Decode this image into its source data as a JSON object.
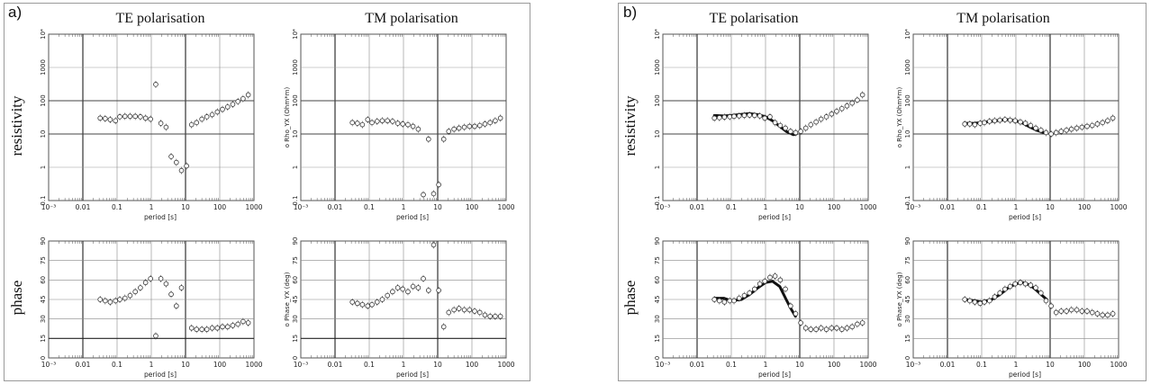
{
  "panels": [
    {
      "label": "a)",
      "columns": [
        "TE polarisation",
        "TM polarisation"
      ],
      "rows": [
        "resistivity",
        "phase"
      ]
    },
    {
      "label": "b)",
      "columns": [
        "TE polarisation",
        "TM polarisation"
      ],
      "rows": [
        "resistivity",
        "phase"
      ]
    }
  ],
  "axes": {
    "x_ticks": [
      "10⁻³",
      "0.01",
      "0.1",
      "1",
      "10",
      "100",
      "1000"
    ],
    "x_label": "period [s]",
    "res_ticks": [
      "0.1",
      "1",
      "10",
      "100",
      "1000",
      "10⁴"
    ],
    "phase_ticks": [
      "0",
      "15",
      "30",
      "45",
      "60",
      "75",
      "90"
    ],
    "ylabel_te_res": "",
    "ylabel_tm_res": "o Rho_YX (Ohm*m)",
    "ylabel_te_phase": "",
    "ylabel_tm_phase": "o Phase_YX (deg)"
  },
  "chart_data": [
    {
      "id": "a-te-res",
      "type": "scatter",
      "title": "TE polarisation",
      "ylabel": "resistivity",
      "xlabel": "period [s]",
      "xscale": "log",
      "yscale": "log",
      "xlim": [
        0.001,
        1000
      ],
      "ylim": [
        0.1,
        10000
      ],
      "x": [
        0.032,
        0.045,
        0.063,
        0.09,
        0.12,
        0.17,
        0.24,
        0.34,
        0.48,
        0.68,
        0.95,
        1.35,
        1.9,
        2.7,
        3.8,
        5.4,
        7.6,
        10.7,
        15,
        21,
        30,
        42,
        60,
        85,
        120,
        170,
        240,
        340,
        480,
        680
      ],
      "y": [
        30,
        29,
        27,
        25,
        33,
        34,
        34,
        34,
        33,
        30,
        28,
        310,
        21,
        16,
        2.1,
        1.4,
        0.8,
        1.1,
        19,
        22,
        28,
        33,
        38,
        46,
        55,
        65,
        78,
        95,
        115,
        150
      ]
    },
    {
      "id": "a-tm-res",
      "type": "scatter",
      "title": "TM polarisation",
      "ylabel": "o Rho_YX (Ohm*m)",
      "xlabel": "period [s]",
      "xscale": "log",
      "yscale": "log",
      "xlim": [
        0.001,
        1000
      ],
      "ylim": [
        0.1,
        10000
      ],
      "x": [
        0.032,
        0.045,
        0.063,
        0.09,
        0.12,
        0.17,
        0.24,
        0.34,
        0.48,
        0.68,
        0.95,
        1.35,
        1.9,
        2.7,
        3.8,
        5.4,
        7.6,
        10.7,
        15,
        21,
        30,
        42,
        60,
        85,
        120,
        170,
        240,
        340,
        480,
        680
      ],
      "y": [
        22,
        21,
        19,
        27,
        22,
        24,
        25,
        25,
        24,
        21,
        20,
        19,
        17,
        14,
        0.15,
        7,
        0.16,
        0.3,
        7,
        12,
        14,
        15,
        16,
        17,
        17,
        18,
        20,
        22,
        25,
        30
      ]
    },
    {
      "id": "a-te-phase",
      "type": "scatter",
      "title": "",
      "ylabel": "phase",
      "xlabel": "period [s]",
      "xscale": "log",
      "xlim": [
        0.001,
        1000
      ],
      "ylim": [
        0,
        90
      ],
      "x": [
        0.032,
        0.045,
        0.063,
        0.09,
        0.12,
        0.17,
        0.24,
        0.34,
        0.48,
        0.68,
        0.95,
        1.35,
        1.9,
        2.7,
        3.8,
        5.4,
        7.6,
        15,
        21,
        30,
        42,
        60,
        85,
        120,
        170,
        240,
        340,
        480,
        680
      ],
      "y": [
        45,
        44,
        43,
        44,
        45,
        46,
        48,
        51,
        54,
        58,
        61,
        17,
        61,
        57,
        49,
        40,
        54,
        23,
        22,
        22,
        22,
        23,
        23,
        24,
        24,
        25,
        26,
        28,
        27
      ]
    },
    {
      "id": "a-tm-phase",
      "type": "scatter",
      "title": "",
      "ylabel": "o Phase_YX (deg)",
      "xlabel": "period [s]",
      "xscale": "log",
      "xlim": [
        0.001,
        1000
      ],
      "ylim": [
        0,
        90
      ],
      "x": [
        0.032,
        0.045,
        0.063,
        0.09,
        0.12,
        0.17,
        0.24,
        0.34,
        0.48,
        0.68,
        0.95,
        1.35,
        1.9,
        2.7,
        3.8,
        5.4,
        7.6,
        10.7,
        15,
        21,
        30,
        42,
        60,
        85,
        120,
        170,
        240,
        340,
        480,
        680
      ],
      "y": [
        43,
        42,
        41,
        40,
        41,
        43,
        45,
        48,
        51,
        54,
        53,
        51,
        55,
        54,
        61,
        52,
        87,
        52,
        24,
        35,
        37,
        38,
        37,
        37,
        36,
        35,
        33,
        32,
        32,
        32
      ]
    },
    {
      "id": "b-te-res",
      "type": "scatter+line",
      "title": "TE polarisation",
      "ylabel": "resistivity",
      "xlabel": "period [s]",
      "xscale": "log",
      "yscale": "log",
      "xlim": [
        0.001,
        1000
      ],
      "ylim": [
        0.1,
        10000
      ],
      "x": [
        0.032,
        0.045,
        0.063,
        0.09,
        0.12,
        0.17,
        0.24,
        0.34,
        0.48,
        0.68,
        0.95,
        1.35,
        1.9,
        2.7,
        3.8,
        5.4,
        7.6,
        10.7,
        15,
        21,
        30,
        42,
        60,
        85,
        120,
        170,
        240,
        340,
        480,
        680
      ],
      "y": [
        30,
        31,
        32,
        33,
        34,
        35,
        36,
        37,
        36,
        35,
        30,
        33,
        22,
        18,
        15,
        12,
        11,
        12,
        15,
        19,
        23,
        28,
        33,
        40,
        48,
        58,
        70,
        85,
        105,
        150
      ],
      "fit_x": [
        0.032,
        0.06,
        0.1,
        0.2,
        0.35,
        0.6,
        1,
        1.6,
        2.6,
        4,
        6.5,
        8
      ],
      "fit_y": [
        36,
        35,
        36,
        39,
        41,
        38,
        33,
        25,
        17,
        12,
        9.5,
        10
      ]
    },
    {
      "id": "b-tm-res",
      "type": "scatter+line",
      "title": "TM polarisation",
      "ylabel": "o Rho_YX (Ohm*m)",
      "xlabel": "period [s]",
      "xscale": "log",
      "yscale": "log",
      "xlim": [
        0.001,
        1000
      ],
      "ylim": [
        0.1,
        10000
      ],
      "x": [
        0.032,
        0.045,
        0.063,
        0.09,
        0.12,
        0.17,
        0.24,
        0.34,
        0.48,
        0.68,
        0.95,
        1.35,
        1.9,
        2.7,
        3.8,
        5.4,
        7.6,
        10.7,
        15,
        21,
        30,
        42,
        60,
        85,
        120,
        170,
        240,
        340,
        480,
        680
      ],
      "y": [
        20,
        20,
        19,
        21,
        22,
        24,
        25,
        26,
        27,
        26,
        25,
        23,
        21,
        18,
        15,
        13,
        11,
        10,
        11,
        12,
        13,
        14,
        15,
        16,
        17,
        18,
        20,
        22,
        25,
        30
      ],
      "fit_x": [
        0.032,
        0.06,
        0.1,
        0.2,
        0.35,
        0.6,
        1,
        1.6,
        2.6,
        4,
        6.5,
        8
      ],
      "fit_y": [
        21,
        21,
        22,
        24,
        26,
        27,
        25,
        21,
        16,
        13,
        11,
        10.5
      ]
    },
    {
      "id": "b-te-phase",
      "type": "scatter+line",
      "title": "",
      "ylabel": "phase",
      "xlabel": "period [s]",
      "xscale": "log",
      "xlim": [
        0.001,
        1000
      ],
      "ylim": [
        0,
        90
      ],
      "x": [
        0.032,
        0.045,
        0.063,
        0.09,
        0.12,
        0.17,
        0.24,
        0.34,
        0.48,
        0.68,
        0.95,
        1.35,
        1.9,
        2.7,
        3.8,
        5.4,
        7.6,
        10.7,
        15,
        21,
        30,
        42,
        60,
        85,
        120,
        170,
        240,
        340,
        480,
        680
      ],
      "y": [
        45,
        44,
        43,
        44,
        44,
        46,
        48,
        50,
        53,
        57,
        59,
        62,
        63,
        60,
        53,
        40,
        34,
        27,
        23,
        22,
        22,
        23,
        22,
        23,
        23,
        22,
        23,
        24,
        26,
        27
      ],
      "fit_x": [
        0.032,
        0.06,
        0.1,
        0.2,
        0.35,
        0.6,
        1,
        1.6,
        2.6,
        4,
        5.5,
        7.5
      ],
      "fit_y": [
        46,
        46,
        44,
        45,
        49,
        54,
        58,
        59,
        55,
        45,
        38,
        32
      ]
    },
    {
      "id": "b-tm-phase",
      "type": "scatter+line",
      "title": "",
      "ylabel": "o Phase_YX (deg)",
      "xlabel": "period [s]",
      "xscale": "log",
      "xlim": [
        0.001,
        1000
      ],
      "ylim": [
        0,
        90
      ],
      "x": [
        0.032,
        0.045,
        0.063,
        0.09,
        0.12,
        0.17,
        0.24,
        0.34,
        0.48,
        0.68,
        0.95,
        1.35,
        1.9,
        2.7,
        3.8,
        5.4,
        7.6,
        10.7,
        15,
        21,
        30,
        42,
        60,
        85,
        120,
        170,
        240,
        340,
        480,
        680
      ],
      "y": [
        45,
        44,
        43,
        42,
        43,
        44,
        47,
        50,
        53,
        55,
        57,
        58,
        57,
        56,
        54,
        50,
        44,
        40,
        35,
        36,
        36,
        37,
        37,
        36,
        36,
        35,
        34,
        33,
        33,
        34
      ],
      "fit_x": [
        0.032,
        0.06,
        0.1,
        0.2,
        0.35,
        0.6,
        1,
        1.6,
        2.6,
        4,
        6.5,
        8
      ],
      "fit_y": [
        45,
        44,
        43,
        45,
        49,
        54,
        57,
        58,
        56,
        52,
        47,
        45
      ]
    }
  ]
}
